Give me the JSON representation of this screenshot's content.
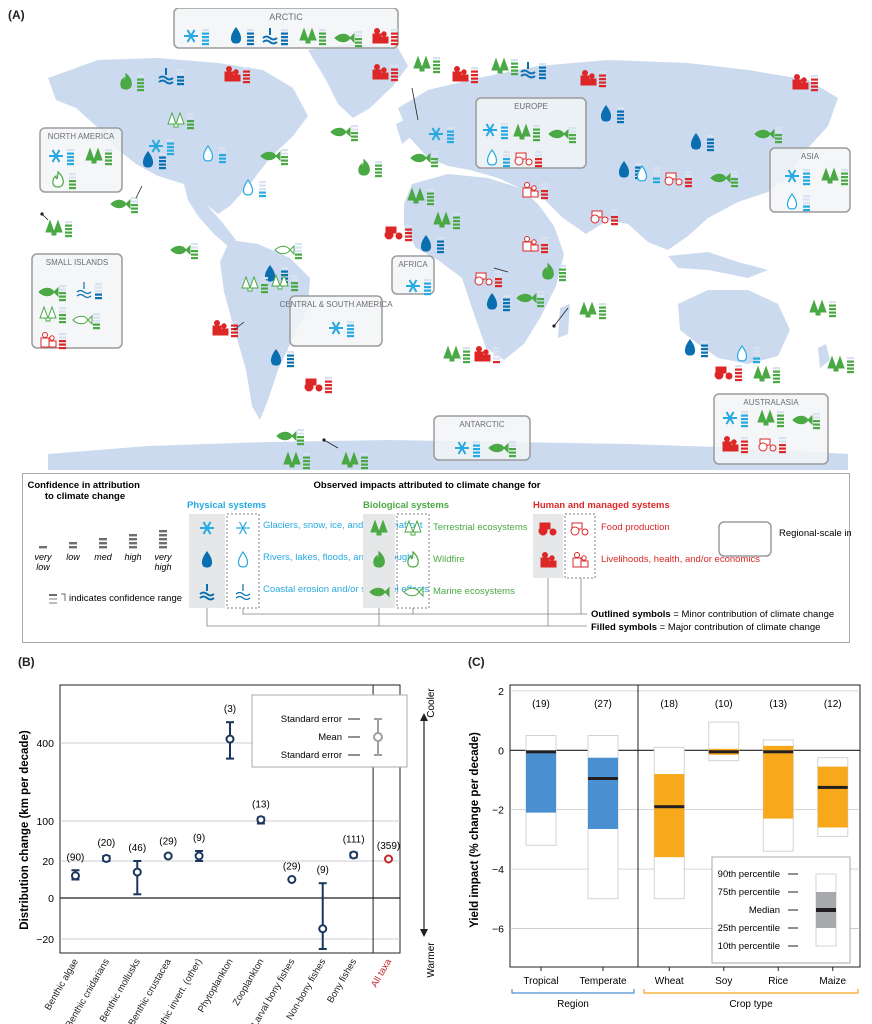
{
  "panel_a": {
    "label": "(A)",
    "regions": {
      "arctic": "ARCTIC",
      "north_america": "NORTH AMERICA",
      "europe": "EUROPE",
      "asia": "ASIA",
      "small_islands": "SMALL ISLANDS",
      "africa": "AFRICA",
      "central_south_america": "CENTRAL & SOUTH AMERICA",
      "antarctic": "ANTARCTIC",
      "australasia": "AUSTRALASIA"
    },
    "legend": {
      "confidence_title": "Confidence in attribution to climate change",
      "conf_levels": [
        "very low",
        "low",
        "med",
        "high",
        "very high"
      ],
      "range_note": "indicates confidence range",
      "observed_title": "Observed impacts attributed to climate change for",
      "physical_title": "Physical systems",
      "physical_items": [
        "Glaciers, snow, ice, and/or permafrost",
        "Rivers, lakes, floods, and/or drought",
        "Coastal erosion and/or sea level effects"
      ],
      "biological_title": "Biological systems",
      "biological_items": [
        "Terrestrial ecosystems",
        "Wildfire",
        "Marine ecosystems"
      ],
      "human_title": "Human and managed systems",
      "human_items": [
        "Food production",
        "Livelihoods, health, and/or economics"
      ],
      "regional_label": "Regional-scale impacts",
      "outlined_bold": "Outlined symbols",
      "outlined_rest": " = Minor contribution of climate change",
      "filled_bold": "Filled symbols",
      "filled_rest": " = Major contribution of climate change"
    },
    "colors": {
      "physical": "#27aae1",
      "physical_dark": "#0a6fb0",
      "biological": "#4aa845",
      "human": "#dd2727",
      "land": "#cbdaee"
    }
  },
  "panel_b": {
    "label": "(B)",
    "legend": {
      "se_top": "Standard error",
      "mean": "Mean",
      "se_bottom": "Standard error"
    },
    "arrow": {
      "top": "Cooler",
      "bottom": "Warmer"
    },
    "chart_data": {
      "type": "scatter",
      "ylabel": "Distribution change (km per decade)",
      "y_ticks": [
        "400",
        "100",
        "20",
        "0",
        "−20"
      ],
      "categories": [
        "Benthic algae",
        "Benthic cnidarians",
        "Benthic mollusks",
        "Benthic crustacea",
        "Benthic invert. (other)",
        "Phytoplankton",
        "Zooplankton",
        "Larval bony fishes",
        "Non-bony fishes",
        "Bony fishes",
        "All taxa"
      ],
      "counts": [
        "(90)",
        "(20)",
        "(46)",
        "(29)",
        "(9)",
        "(3)",
        "(13)",
        "(29)",
        "(9)",
        "(111)",
        "(359)"
      ],
      "mean": [
        12,
        25,
        14,
        30,
        30,
        415,
        105,
        10,
        -15,
        32,
        24
      ],
      "se_low": [
        10,
        20,
        2,
        27,
        20,
        340,
        95,
        10,
        -25,
        27,
        24
      ],
      "se_high": [
        15,
        30,
        20,
        33,
        40,
        480,
        113,
        10,
        8,
        37,
        24
      ],
      "highlight_category": "All taxa",
      "highlight_color": "#c1272d",
      "series_color": "#1b365d"
    }
  },
  "panel_c": {
    "label": "(C)",
    "legend": {
      "p90": "90th percentile",
      "p75": "75th percentile",
      "median": "Median",
      "p25": "25th percentile",
      "p10": "10th percentile"
    },
    "chart_data": {
      "type": "box",
      "ylabel": "Yield impact (% change per decade)",
      "y_ticks": [
        "2",
        "0",
        "−2",
        "−4",
        "−6"
      ],
      "ylim": [
        -7.3,
        2.2
      ],
      "groups": [
        {
          "label": "Region",
          "color": "#4a90d0",
          "categories": [
            "Tropical",
            "Temperate"
          ]
        },
        {
          "label": "Crop type",
          "color": "#f7a81b",
          "categories": [
            "Wheat",
            "Soy",
            "Rice",
            "Maize"
          ]
        }
      ],
      "boxes": [
        {
          "category": "Tropical",
          "n": "(19)",
          "p10": -3.2,
          "p25": -2.1,
          "median": -0.05,
          "p75": -0.05,
          "p90": 0.5,
          "color": "#4a90d0"
        },
        {
          "category": "Temperate",
          "n": "(27)",
          "p10": -5.0,
          "p25": -2.65,
          "median": -0.95,
          "p75": -0.25,
          "p90": 0.5,
          "color": "#4a90d0"
        },
        {
          "category": "Wheat",
          "n": "(18)",
          "p10": -5.0,
          "p25": -3.6,
          "median": -1.9,
          "p75": -0.8,
          "p90": 0.1,
          "color": "#f7a81b"
        },
        {
          "category": "Soy",
          "n": "(10)",
          "p10": -0.35,
          "p25": -0.15,
          "median": -0.05,
          "p75": 0.05,
          "p90": 0.95,
          "color": "#f7a81b"
        },
        {
          "category": "Rice",
          "n": "(13)",
          "p10": -3.4,
          "p25": -2.3,
          "median": -0.05,
          "p75": 0.15,
          "p90": 0.35,
          "color": "#f7a81b"
        },
        {
          "category": "Maize",
          "n": "(12)",
          "p10": -2.9,
          "p25": -2.6,
          "median": -1.25,
          "p75": -0.55,
          "p90": -0.25,
          "color": "#f7a81b"
        }
      ]
    }
  }
}
